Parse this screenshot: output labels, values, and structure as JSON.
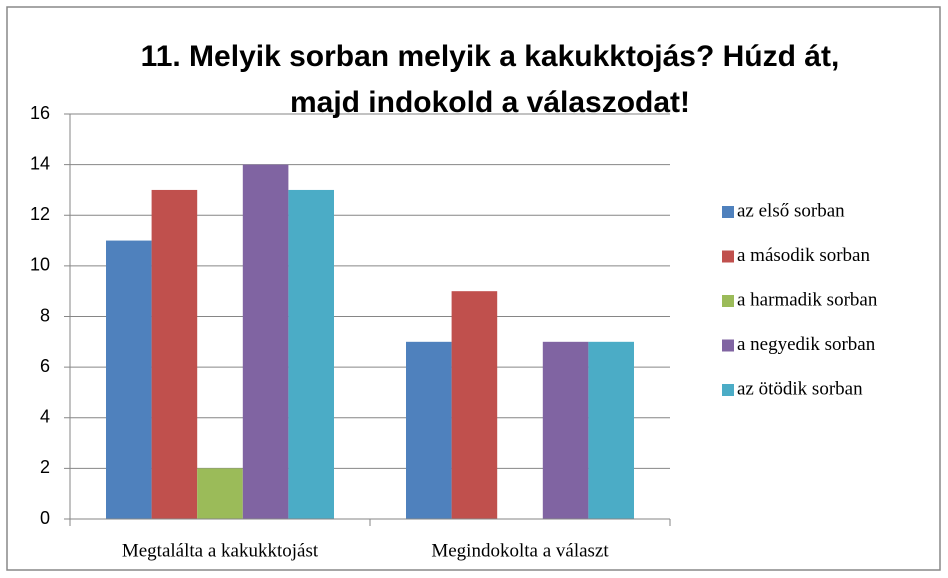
{
  "chart_data": {
    "type": "bar",
    "title": "11. Melyik sorban melyik a kakukktojás? Húzd át, majd indokold a válaszodat!",
    "categories": [
      "Megtalálta a kakukktojást",
      "Megindokolta a választ"
    ],
    "series": [
      {
        "name": "az első sorban",
        "color": "#4f81bd",
        "values": [
          11,
          7
        ]
      },
      {
        "name": "a második sorban",
        "color": "#c0504d",
        "values": [
          13,
          9
        ]
      },
      {
        "name": "a harmadik sorban",
        "color": "#9bbb59",
        "values": [
          2,
          0
        ]
      },
      {
        "name": "a negyedik sorban",
        "color": "#8064a2",
        "values": [
          14,
          7
        ]
      },
      {
        "name": "az ötödik sorban",
        "color": "#4bacc6",
        "values": [
          13,
          7
        ]
      }
    ],
    "ylim": [
      0,
      16
    ],
    "yticks": [
      0,
      2,
      4,
      6,
      8,
      10,
      12,
      14,
      16
    ],
    "grid": true,
    "legend": "right"
  }
}
